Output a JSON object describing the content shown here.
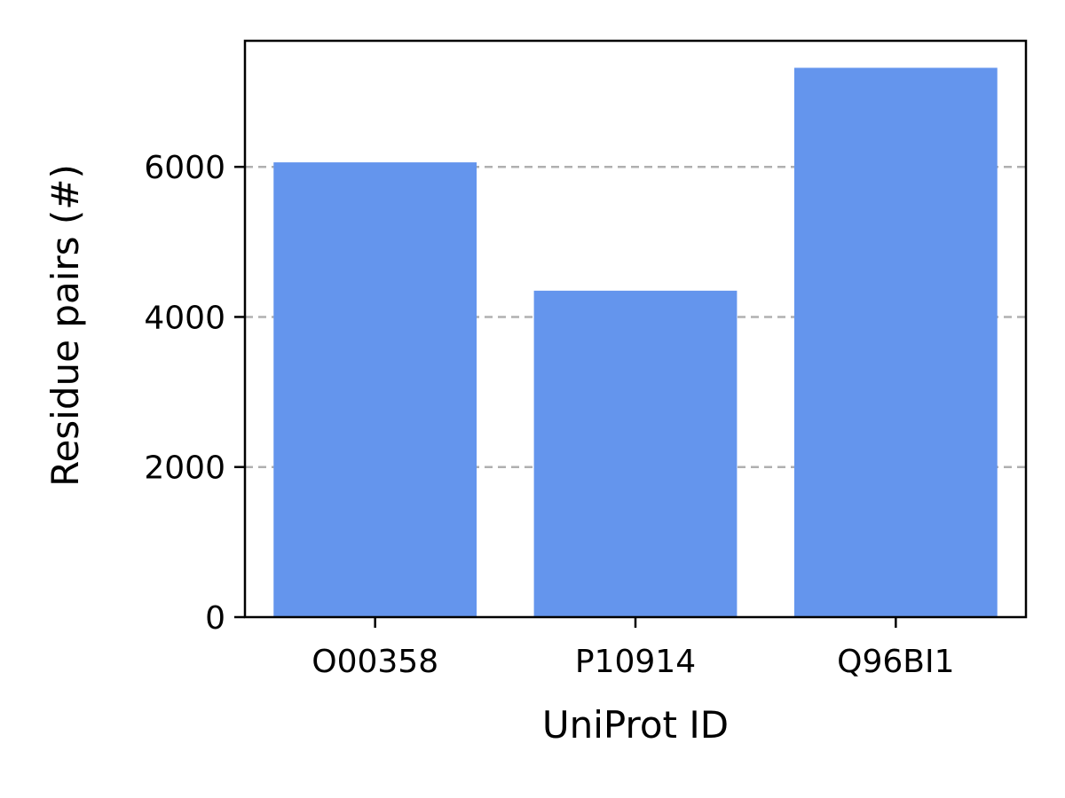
{
  "chart_data": {
    "type": "bar",
    "title": "",
    "xlabel": "UniProt ID",
    "ylabel": "Residue pairs (#)",
    "categories": [
      "O00358",
      "P10914",
      "Q96BI1"
    ],
    "values": [
      6060,
      4350,
      7320
    ],
    "ylim": [
      0,
      7680
    ],
    "yticks": [
      0,
      2000,
      4000,
      6000
    ],
    "grid": "y-dashed",
    "legend": "none",
    "colors": {
      "bar": "#6495ED",
      "grid": "#b0b0b0",
      "axis": "#000000"
    }
  }
}
